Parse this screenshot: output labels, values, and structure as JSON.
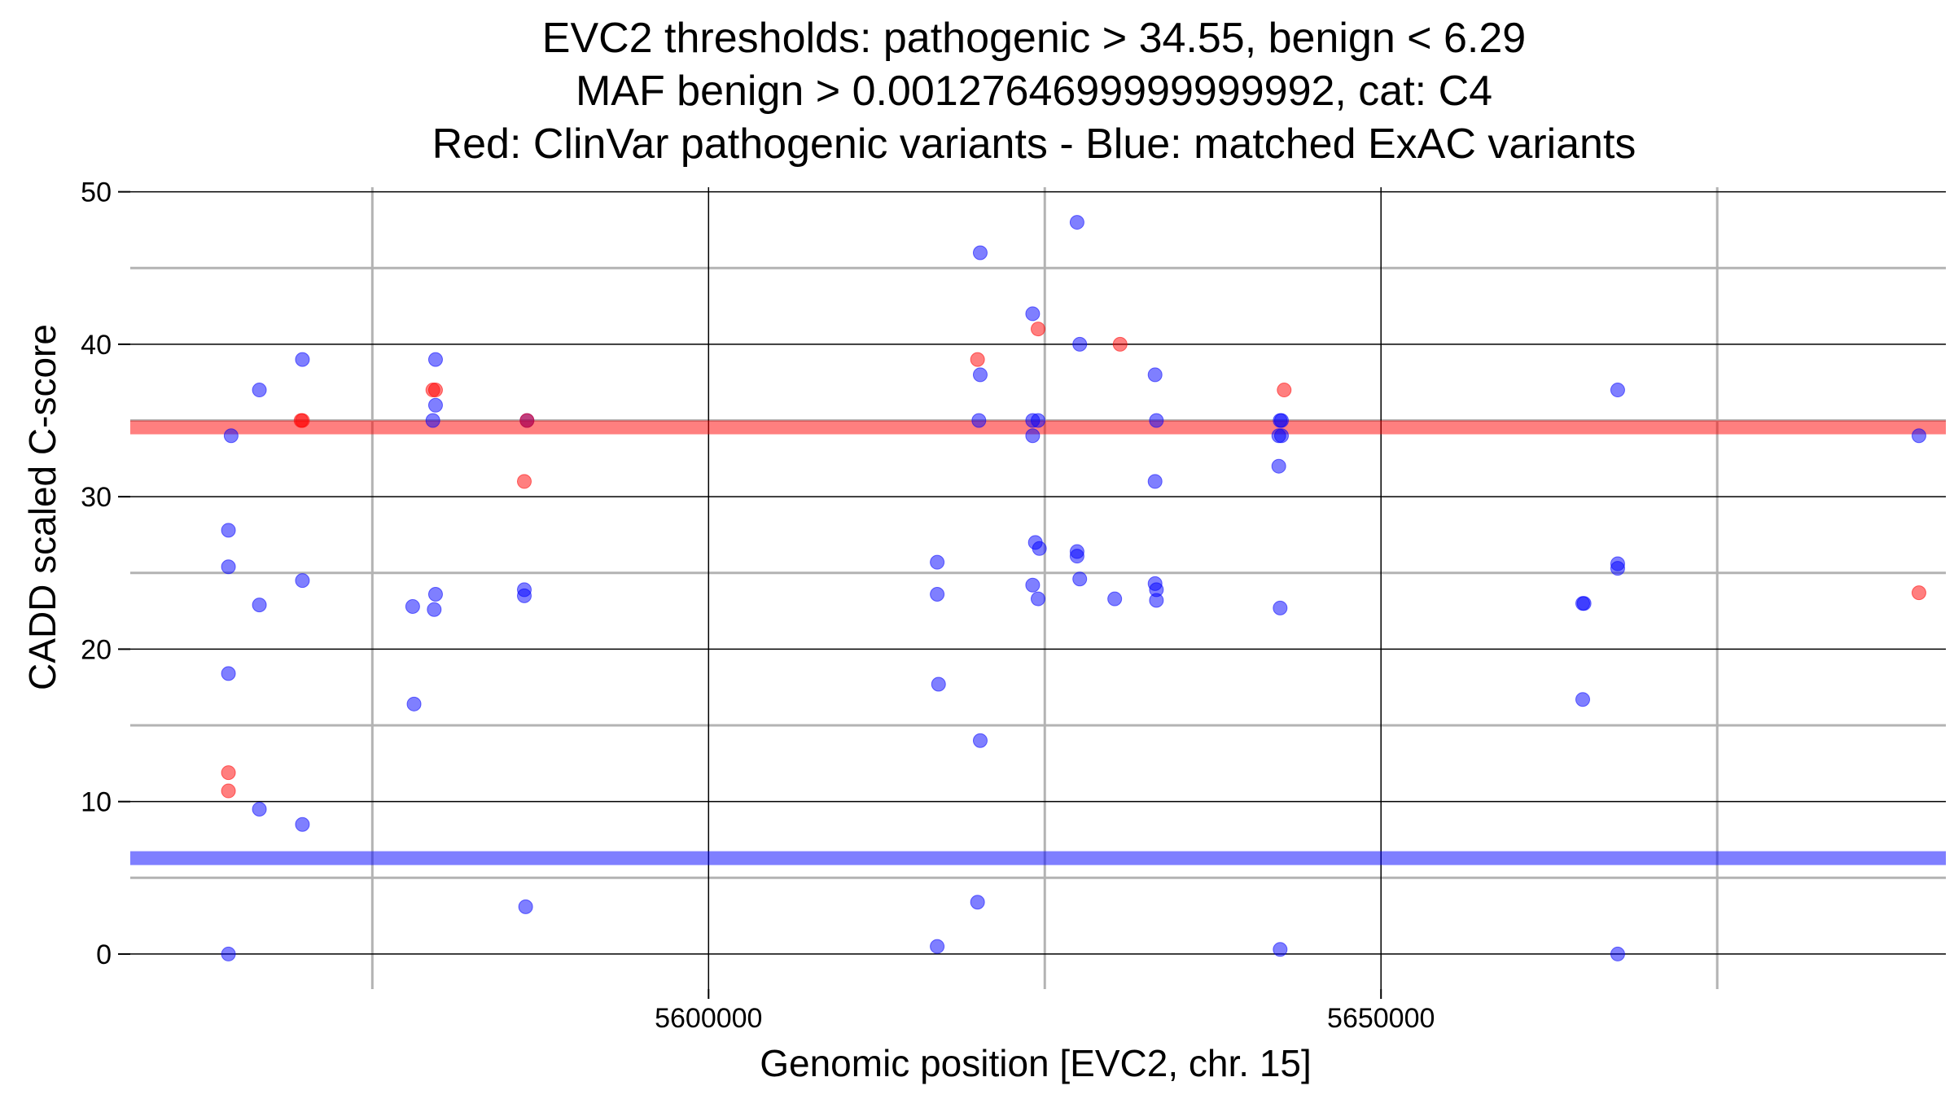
{
  "chart_data": {
    "type": "scatter",
    "title_lines": [
      "EVC2 thresholds: pathogenic > 34.55, benign < 6.29",
      "MAF benign > 0.0012764699999999992, cat: C4",
      "Red: ClinVar pathogenic variants - Blue: matched ExAC variants"
    ],
    "xlabel": "Genomic position [EVC2, chr. 15]",
    "ylabel": "CADD scaled C-score",
    "xlim": [
      5557000,
      5692000
    ],
    "ylim": [
      -2.3,
      50.3
    ],
    "x_ticks": [
      5600000,
      5650000
    ],
    "x_minor_gridlines": [
      5575000,
      5625000,
      5675000
    ],
    "y_ticks": [
      0,
      10,
      20,
      30,
      40,
      50
    ],
    "y_minor_gridlines": [
      5,
      15,
      25,
      35,
      45
    ],
    "thresholds": {
      "pathogenic": 34.55,
      "benign": 6.29,
      "pathogenic_color": "#ff0000",
      "benign_color": "#0000ff"
    },
    "series": [
      {
        "color": "#0000ff",
        "points": [
          [
            5564500,
            34
          ],
          [
            5564300,
            27.8
          ],
          [
            5564300,
            25.4
          ],
          [
            5566600,
            22.9
          ],
          [
            5564300,
            18.4
          ],
          [
            5566600,
            9.5
          ],
          [
            5564300,
            0
          ],
          [
            5566600,
            37
          ],
          [
            5569800,
            39
          ],
          [
            5569800,
            24.5
          ],
          [
            5569800,
            8.5
          ],
          [
            5578000,
            22.8
          ],
          [
            5579700,
            39
          ],
          [
            5579700,
            36
          ],
          [
            5579500,
            35
          ],
          [
            5579700,
            23.6
          ],
          [
            5579600,
            22.6
          ],
          [
            5578100,
            16.4
          ],
          [
            5586500,
            35
          ],
          [
            5586300,
            23.9
          ],
          [
            5586300,
            23.5
          ],
          [
            5586400,
            3.1
          ],
          [
            5617000,
            25.7
          ],
          [
            5617000,
            23.6
          ],
          [
            5617100,
            17.7
          ],
          [
            5617000,
            0.5
          ],
          [
            5620200,
            46
          ],
          [
            5620200,
            38
          ],
          [
            5620100,
            35
          ],
          [
            5620200,
            14
          ],
          [
            5620000,
            3.4
          ],
          [
            5624100,
            42
          ],
          [
            5624100,
            35
          ],
          [
            5624500,
            35
          ],
          [
            5624100,
            34
          ],
          [
            5624300,
            27
          ],
          [
            5624600,
            26.6
          ],
          [
            5624100,
            24.2
          ],
          [
            5624500,
            23.3
          ],
          [
            5627400,
            48
          ],
          [
            5627600,
            40
          ],
          [
            5627400,
            26.4
          ],
          [
            5627400,
            26.1
          ],
          [
            5627600,
            24.6
          ],
          [
            5630200,
            23.3
          ],
          [
            5633200,
            38
          ],
          [
            5633300,
            35
          ],
          [
            5633200,
            31
          ],
          [
            5633200,
            24.3
          ],
          [
            5633300,
            23.9
          ],
          [
            5633300,
            23.2
          ],
          [
            5642500,
            35
          ],
          [
            5642600,
            35
          ],
          [
            5642400,
            34
          ],
          [
            5642600,
            34
          ],
          [
            5642400,
            32
          ],
          [
            5642500,
            22.7
          ],
          [
            5642500,
            0.3
          ],
          [
            5665000,
            23
          ],
          [
            5665100,
            23
          ],
          [
            5665000,
            16.7
          ],
          [
            5667600,
            37
          ],
          [
            5667600,
            25.6
          ],
          [
            5667600,
            25.3
          ],
          [
            5667600,
            0
          ],
          [
            5690000,
            34
          ]
        ]
      },
      {
        "color": "#ff0000",
        "points": [
          [
            5564300,
            11.9
          ],
          [
            5564300,
            10.7
          ],
          [
            5569800,
            35
          ],
          [
            5569700,
            35
          ],
          [
            5579500,
            37
          ],
          [
            5579700,
            37
          ],
          [
            5586500,
            35
          ],
          [
            5586300,
            31
          ],
          [
            5620000,
            39
          ],
          [
            5624500,
            41
          ],
          [
            5630600,
            40
          ],
          [
            5642800,
            37
          ],
          [
            5690000,
            23.7
          ]
        ]
      }
    ]
  }
}
